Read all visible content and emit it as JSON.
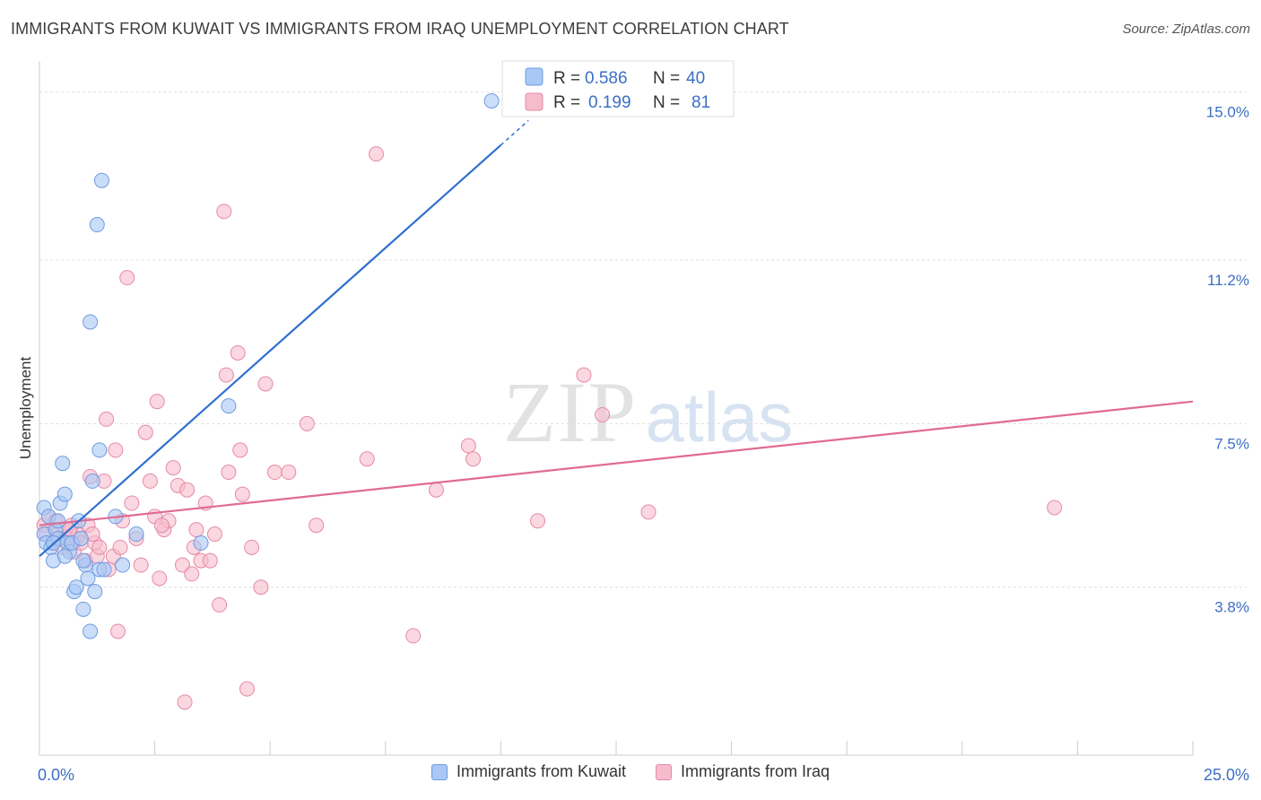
{
  "title": "IMMIGRANTS FROM KUWAIT VS IMMIGRANTS FROM IRAQ UNEMPLOYMENT CORRELATION CHART",
  "source": "Source: ZipAtlas.com",
  "watermark": {
    "zip": "ZIP",
    "atlas": "atlas"
  },
  "colors": {
    "kuwait_fill": "#a9c8f5",
    "kuwait_stroke": "#6e9be0",
    "kuwait_line": "#2f6fcf",
    "iraq_fill": "#f6bccd",
    "iraq_stroke": "#e68aa6",
    "iraq_line": "#e06b93",
    "axis_label": "#3b6fc4",
    "grid": "#dddddd"
  },
  "legend": {
    "kuwait": {
      "r_label": "R =",
      "r_value": "0.586",
      "n_label": "N =",
      "n_value": "40"
    },
    "iraq": {
      "r_label": "R =",
      "r_value": "0.199",
      "n_label": "N =",
      "n_value": "81"
    }
  },
  "bottom_legend": {
    "kuwait": "Immigrants from Kuwait",
    "iraq": "Immigrants from Iraq"
  },
  "chart_data": {
    "type": "scatter",
    "title": "IMMIGRANTS FROM KUWAIT VS IMMIGRANTS FROM IRAQ UNEMPLOYMENT CORRELATION CHART",
    "xlabel": "",
    "ylabel": "Unemployment",
    "xlim": [
      0,
      25
    ],
    "ylim": [
      0,
      15.5
    ],
    "x_tick_labels": [
      "0.0%",
      "25.0%"
    ],
    "x_tick_values": [
      0,
      25
    ],
    "y_ticks": [
      {
        "value": 3.8,
        "label": "3.8%"
      },
      {
        "value": 7.5,
        "label": "7.5%"
      },
      {
        "value": 11.2,
        "label": "11.2%"
      },
      {
        "value": 15.0,
        "label": "15.0%"
      }
    ],
    "series": [
      {
        "name": "Immigrants from Kuwait",
        "points": [
          [
            0.1,
            5.6
          ],
          [
            0.1,
            5.0
          ],
          [
            0.15,
            4.8
          ],
          [
            0.2,
            5.4
          ],
          [
            0.25,
            4.7
          ],
          [
            0.3,
            4.4
          ],
          [
            0.35,
            5.1
          ],
          [
            0.4,
            4.9
          ],
          [
            0.45,
            5.7
          ],
          [
            0.5,
            6.6
          ],
          [
            0.55,
            5.9
          ],
          [
            0.6,
            4.8
          ],
          [
            0.65,
            4.6
          ],
          [
            0.7,
            4.8
          ],
          [
            0.75,
            3.7
          ],
          [
            0.8,
            3.8
          ],
          [
            0.85,
            5.3
          ],
          [
            0.9,
            4.9
          ],
          [
            0.95,
            3.3
          ],
          [
            1.0,
            4.3
          ],
          [
            1.05,
            4.0
          ],
          [
            1.1,
            2.8
          ],
          [
            1.15,
            6.2
          ],
          [
            1.2,
            3.7
          ],
          [
            1.25,
            12.0
          ],
          [
            1.3,
            4.2
          ],
          [
            1.35,
            13.0
          ],
          [
            1.4,
            4.2
          ],
          [
            1.1,
            9.8
          ],
          [
            1.3,
            6.9
          ],
          [
            0.95,
            4.4
          ],
          [
            1.65,
            5.4
          ],
          [
            1.8,
            4.3
          ],
          [
            2.1,
            5.0
          ],
          [
            3.5,
            4.8
          ],
          [
            4.1,
            7.9
          ],
          [
            9.8,
            14.8
          ],
          [
            0.55,
            4.5
          ],
          [
            0.4,
            5.3
          ],
          [
            0.3,
            4.8
          ]
        ],
        "trend": {
          "x0": 0.0,
          "y0": 4.5,
          "x1": 10.0,
          "y1": 13.8
        }
      },
      {
        "name": "Immigrants from Iraq",
        "points": [
          [
            0.1,
            5.2
          ],
          [
            0.15,
            5.0
          ],
          [
            0.2,
            5.4
          ],
          [
            0.3,
            4.8
          ],
          [
            0.35,
            5.3
          ],
          [
            0.4,
            5.0
          ],
          [
            0.5,
            4.7
          ],
          [
            0.55,
            5.1
          ],
          [
            0.6,
            4.9
          ],
          [
            0.7,
            5.2
          ],
          [
            0.75,
            4.6
          ],
          [
            0.8,
            4.9
          ],
          [
            0.85,
            5.0
          ],
          [
            0.9,
            4.8
          ],
          [
            1.0,
            4.4
          ],
          [
            1.05,
            5.2
          ],
          [
            1.1,
            6.3
          ],
          [
            1.2,
            4.8
          ],
          [
            1.25,
            4.5
          ],
          [
            1.3,
            4.7
          ],
          [
            1.4,
            6.2
          ],
          [
            1.45,
            7.6
          ],
          [
            1.5,
            4.2
          ],
          [
            1.6,
            4.5
          ],
          [
            1.65,
            6.9
          ],
          [
            1.7,
            2.8
          ],
          [
            1.75,
            4.7
          ],
          [
            1.8,
            5.3
          ],
          [
            1.9,
            10.8
          ],
          [
            2.0,
            5.7
          ],
          [
            2.1,
            4.9
          ],
          [
            2.2,
            4.3
          ],
          [
            2.3,
            7.3
          ],
          [
            2.4,
            6.2
          ],
          [
            2.5,
            5.4
          ],
          [
            2.55,
            8.0
          ],
          [
            2.6,
            4.0
          ],
          [
            2.7,
            5.1
          ],
          [
            2.8,
            5.3
          ],
          [
            2.9,
            6.5
          ],
          [
            3.0,
            6.1
          ],
          [
            3.1,
            4.3
          ],
          [
            3.15,
            1.2
          ],
          [
            3.2,
            6.0
          ],
          [
            3.3,
            4.1
          ],
          [
            3.4,
            5.1
          ],
          [
            3.5,
            4.4
          ],
          [
            3.6,
            5.7
          ],
          [
            3.7,
            4.4
          ],
          [
            3.8,
            5.0
          ],
          [
            3.9,
            3.4
          ],
          [
            4.0,
            12.3
          ],
          [
            4.05,
            8.6
          ],
          [
            4.1,
            6.4
          ],
          [
            4.3,
            9.1
          ],
          [
            4.35,
            6.9
          ],
          [
            4.4,
            5.9
          ],
          [
            4.6,
            4.7
          ],
          [
            4.5,
            1.5
          ],
          [
            4.8,
            3.8
          ],
          [
            4.9,
            8.4
          ],
          [
            5.1,
            6.4
          ],
          [
            5.4,
            6.4
          ],
          [
            5.8,
            7.5
          ],
          [
            6.0,
            5.2
          ],
          [
            7.1,
            6.7
          ],
          [
            7.3,
            13.6
          ],
          [
            8.1,
            2.7
          ],
          [
            8.6,
            6.0
          ],
          [
            9.3,
            7.0
          ],
          [
            9.4,
            6.7
          ],
          [
            10.8,
            5.3
          ],
          [
            11.8,
            8.6
          ],
          [
            12.2,
            7.7
          ],
          [
            13.2,
            5.5
          ],
          [
            22.0,
            5.6
          ],
          [
            0.65,
            5.1
          ],
          [
            0.45,
            4.9
          ],
          [
            1.15,
            5.0
          ],
          [
            2.65,
            5.2
          ],
          [
            3.35,
            4.7
          ]
        ],
        "trend": {
          "x0": 0.0,
          "y0": 5.2,
          "x1": 25.0,
          "y1": 8.0
        }
      }
    ]
  }
}
